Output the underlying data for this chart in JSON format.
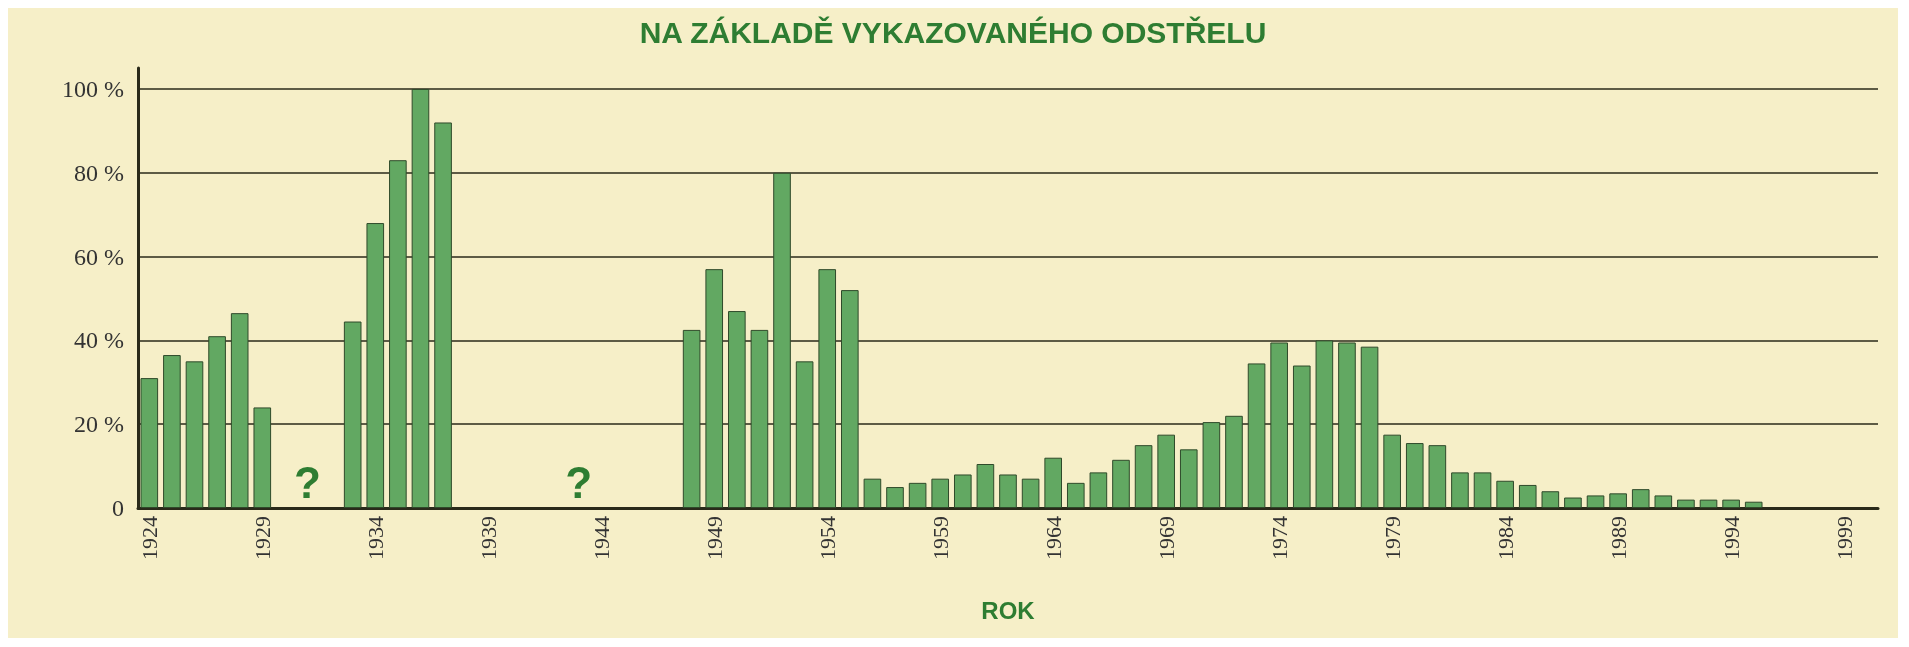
{
  "chart_data": {
    "type": "bar",
    "title": "NA ZÁKLADĚ VYKAZOVANÉHO ODSTŘELU",
    "xlabel": "ROK",
    "categories": [
      "1924",
      null,
      null,
      null,
      null,
      "1929",
      null,
      null,
      null,
      null,
      "1934",
      null,
      null,
      null,
      null,
      "1939",
      null,
      null,
      null,
      null,
      "1944",
      null,
      null,
      null,
      null,
      "1949",
      null,
      null,
      null,
      null,
      "1954",
      null,
      null,
      null,
      null,
      "1959",
      null,
      null,
      null,
      null,
      "1964",
      null,
      null,
      null,
      null,
      "1969",
      null,
      null,
      null,
      null,
      "1974",
      null,
      null,
      null,
      null,
      "1979",
      null,
      null,
      null,
      null,
      "1984",
      null,
      null,
      null,
      null,
      "1989",
      null,
      null,
      null,
      null,
      "1994",
      null,
      null,
      null,
      null,
      "1999",
      null
    ],
    "values": [
      31,
      36.5,
      35,
      41,
      46.5,
      24,
      null,
      null,
      null,
      44.5,
      68,
      83,
      100,
      92,
      null,
      null,
      null,
      null,
      null,
      null,
      null,
      null,
      null,
      null,
      42.5,
      57,
      47,
      42.5,
      80,
      35,
      57,
      52,
      7,
      5,
      6,
      7,
      8,
      10.5,
      8,
      7,
      12,
      6,
      8.5,
      11.5,
      15,
      17.5,
      14,
      20.5,
      22,
      34.5,
      39.5,
      34,
      40,
      39.5,
      38.5,
      17.5,
      15.5,
      15,
      8.5,
      8.5,
      6.5,
      5.5,
      4,
      2.5,
      3,
      3.5,
      4.5,
      3,
      2,
      2,
      2,
      1.5,
      null,
      null,
      null,
      null,
      null
    ],
    "color": "#62a862",
    "annotations": [
      "?",
      "?"
    ],
    "ylim": [
      0,
      105
    ],
    "yticks": [
      0,
      {
        "value": 20,
        "label": "20 %"
      },
      {
        "value": 40,
        "label": "40 %"
      },
      {
        "value": 60,
        "label": "60 %"
      },
      {
        "value": 80,
        "label": "80 %"
      },
      {
        "value": 100,
        "label": "100 %"
      }
    ],
    "grid": "y"
  }
}
